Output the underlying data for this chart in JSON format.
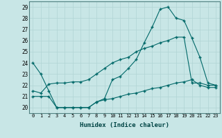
{
  "xlabel": "Humidex (Indice chaleur)",
  "background_color": "#c8e6e6",
  "grid_color": "#b0d4d4",
  "line_color": "#006868",
  "xlim": [
    -0.5,
    23.5
  ],
  "ylim": [
    19.5,
    29.5
  ],
  "yticks": [
    20,
    21,
    22,
    23,
    24,
    25,
    26,
    27,
    28,
    29
  ],
  "xticks": [
    0,
    1,
    2,
    3,
    4,
    5,
    6,
    7,
    8,
    9,
    10,
    11,
    12,
    13,
    14,
    15,
    16,
    17,
    18,
    19,
    20,
    21,
    22,
    23
  ],
  "line1_x": [
    0,
    1,
    2,
    3,
    4,
    5,
    6,
    7,
    8,
    9,
    10,
    11,
    12,
    13,
    14,
    15,
    16,
    17,
    18,
    19,
    20,
    21,
    22,
    23
  ],
  "line1_y": [
    24.0,
    23.0,
    21.5,
    20.0,
    20.0,
    20.0,
    20.0,
    20.0,
    20.5,
    20.8,
    22.5,
    22.8,
    23.5,
    24.3,
    25.8,
    27.2,
    28.8,
    29.0,
    28.0,
    27.8,
    26.2,
    24.5,
    22.2,
    22.0
  ],
  "line2_x": [
    0,
    1,
    2,
    3,
    4,
    5,
    6,
    7,
    8,
    9,
    10,
    11,
    12,
    13,
    14,
    15,
    16,
    17,
    18,
    19,
    20,
    21,
    22,
    23
  ],
  "line2_y": [
    21.5,
    21.3,
    22.1,
    22.2,
    22.2,
    22.3,
    22.3,
    22.5,
    23.0,
    23.5,
    24.0,
    24.3,
    24.5,
    25.0,
    25.3,
    25.5,
    25.8,
    26.0,
    26.3,
    26.3,
    22.2,
    22.2,
    22.0,
    22.0
  ],
  "line3_x": [
    0,
    1,
    2,
    3,
    4,
    5,
    6,
    7,
    8,
    9,
    10,
    11,
    12,
    13,
    14,
    15,
    16,
    17,
    18,
    19,
    20,
    21,
    22,
    23
  ],
  "line3_y": [
    21.0,
    21.0,
    21.0,
    20.0,
    20.0,
    20.0,
    20.0,
    20.0,
    20.5,
    20.7,
    20.8,
    21.0,
    21.2,
    21.3,
    21.5,
    21.7,
    21.8,
    22.0,
    22.2,
    22.3,
    22.5,
    22.0,
    21.8,
    21.8
  ]
}
